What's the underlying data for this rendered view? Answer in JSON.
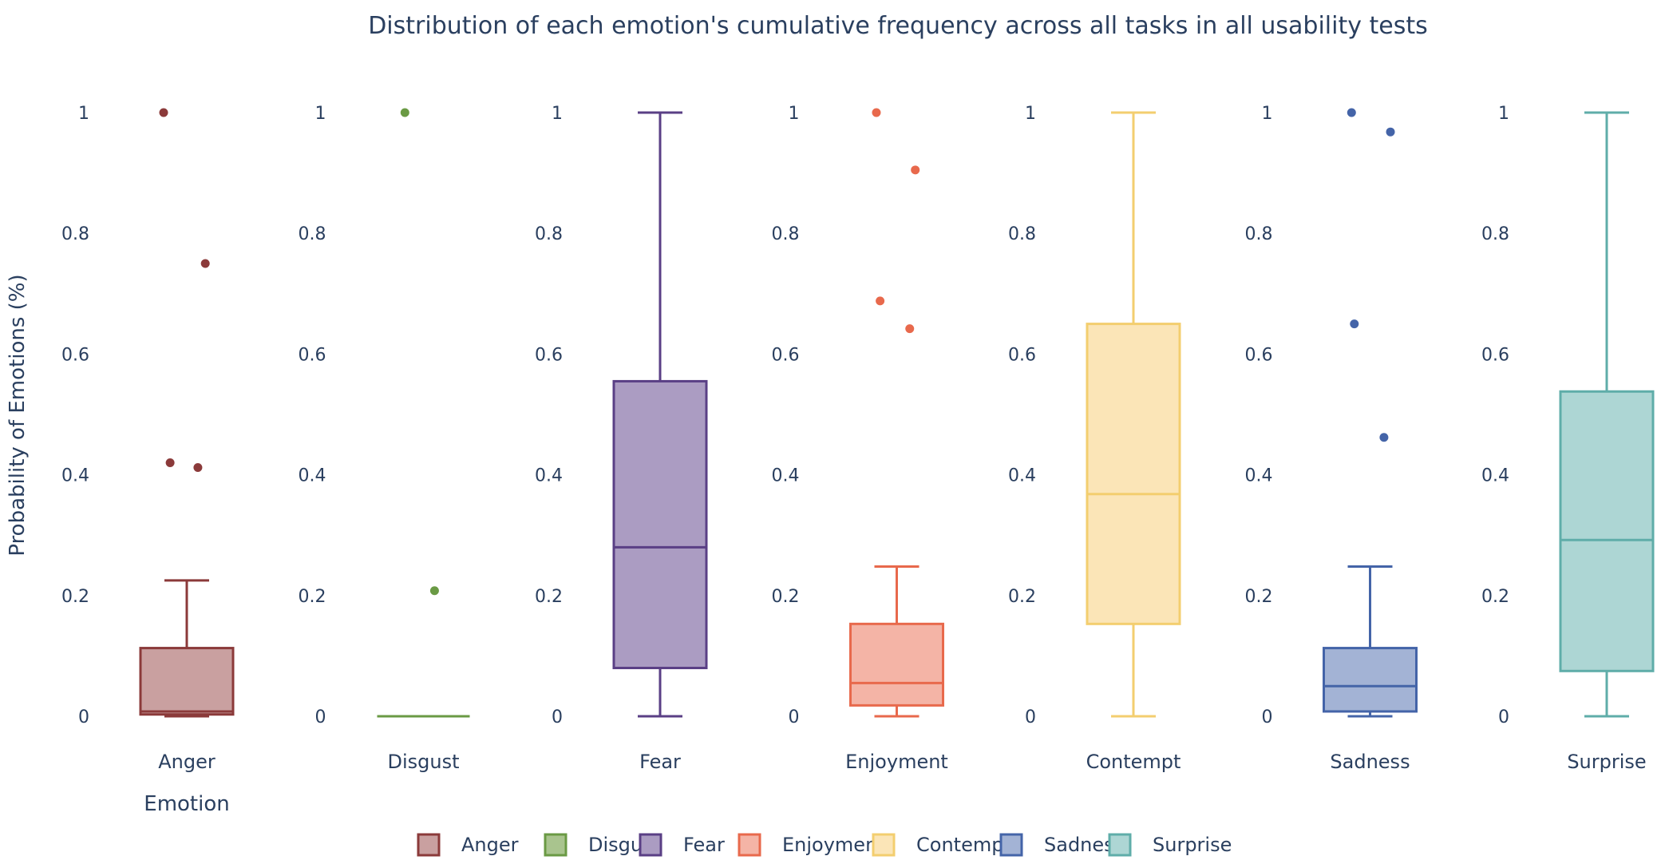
{
  "chart_data": {
    "type": "box",
    "title": "Distribution of each emotion's cumulative frequency across all tasks in all usability tests",
    "ylabel": "Probability of Emotions (%)",
    "xlabel": "Emotion",
    "ylim": [
      0,
      1
    ],
    "yticks": [
      "0",
      "0.2",
      "0.4",
      "0.6",
      "0.8",
      "1"
    ],
    "yticks_values": [
      0,
      0.2,
      0.4,
      0.6,
      0.8,
      1
    ],
    "legend_position": "bottom-center",
    "grid": false,
    "series": [
      {
        "name": "Anger",
        "color": "#8b3a3a",
        "fill": "#c9a0a0",
        "stats": {
          "min": 0.0,
          "q1": 0.003,
          "median": 0.008,
          "q3": 0.113,
          "max": 0.225
        },
        "outliers": [
          {
            "y": 1.0,
            "jitter": -0.25
          },
          {
            "y": 0.75,
            "jitter": 0.2
          },
          {
            "y": 0.42,
            "jitter": -0.18
          },
          {
            "y": 0.412,
            "jitter": 0.12
          }
        ]
      },
      {
        "name": "Disgust",
        "color": "#6a9a44",
        "fill": "#a9c48e",
        "stats": {
          "min": 0.0,
          "q1": 0.0,
          "median": 0.0,
          "q3": 0.0,
          "max": 0.0
        },
        "outliers": [
          {
            "y": 1.0,
            "jitter": -0.2
          },
          {
            "y": 0.208,
            "jitter": 0.12
          }
        ]
      },
      {
        "name": "Fear",
        "color": "#5a3f85",
        "fill": "#ab9cc2",
        "stats": {
          "min": 0.0,
          "q1": 0.08,
          "median": 0.28,
          "q3": 0.555,
          "max": 1.0
        },
        "outliers": []
      },
      {
        "name": "Enjoyment",
        "color": "#e8694c",
        "fill": "#f4b4a6",
        "stats": {
          "min": 0.0,
          "q1": 0.018,
          "median": 0.055,
          "q3": 0.153,
          "max": 0.248
        },
        "outliers": [
          {
            "y": 1.0,
            "jitter": -0.22
          },
          {
            "y": 0.905,
            "jitter": 0.2
          },
          {
            "y": 0.688,
            "jitter": -0.18
          },
          {
            "y": 0.642,
            "jitter": 0.14
          }
        ]
      },
      {
        "name": "Contempt",
        "color": "#f3ce6f",
        "fill": "#fbe5b7",
        "stats": {
          "min": 0.0,
          "q1": 0.153,
          "median": 0.368,
          "q3": 0.65,
          "max": 1.0
        },
        "outliers": []
      },
      {
        "name": "Sadness",
        "color": "#4464a8",
        "fill": "#a3b3d5",
        "stats": {
          "min": 0.0,
          "q1": 0.008,
          "median": 0.05,
          "q3": 0.113,
          "max": 0.248
        },
        "outliers": [
          {
            "y": 1.0,
            "jitter": -0.2
          },
          {
            "y": 0.968,
            "jitter": 0.22
          },
          {
            "y": 0.65,
            "jitter": -0.17
          },
          {
            "y": 0.462,
            "jitter": 0.15
          }
        ]
      },
      {
        "name": "Surprise",
        "color": "#5fada9",
        "fill": "#add6d4",
        "stats": {
          "min": 0.0,
          "q1": 0.075,
          "median": 0.292,
          "q3": 0.538,
          "max": 1.0
        },
        "outliers": []
      }
    ]
  }
}
